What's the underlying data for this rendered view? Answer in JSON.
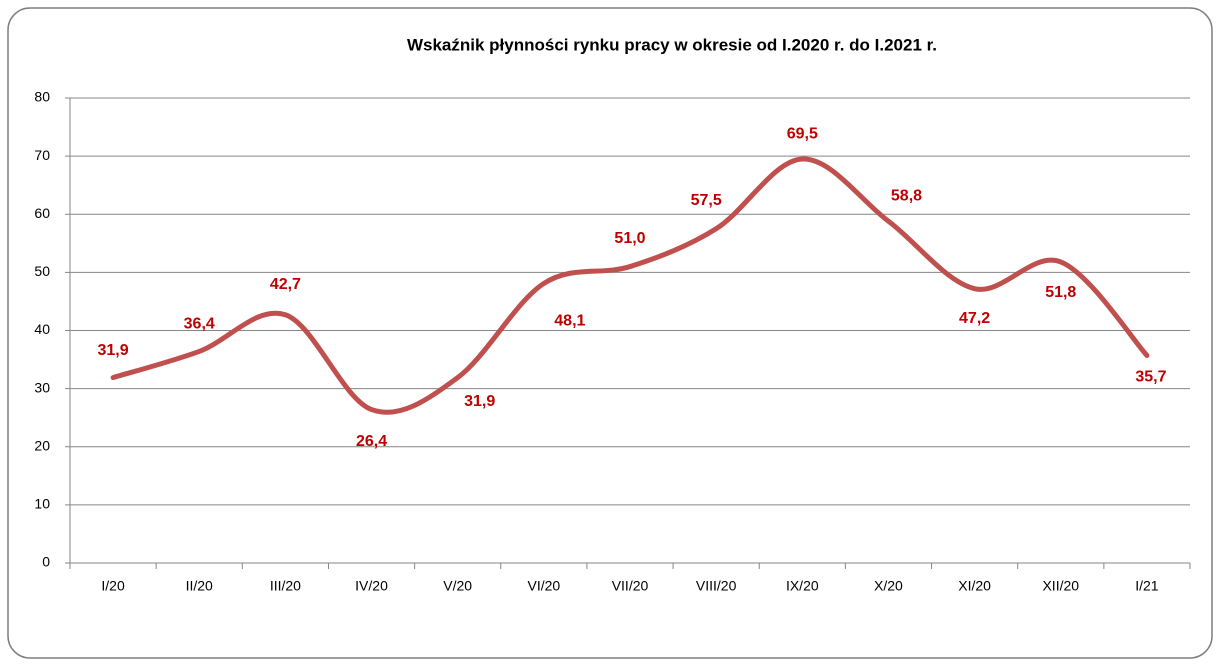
{
  "chart_data": {
    "type": "line",
    "title": "Wskaźnik płynności rynku pracy w okresie od I.2020 r. do I.2021 r.",
    "categories": [
      "I/20",
      "II/20",
      "III/20",
      "IV/20",
      "V/20",
      "VI/20",
      "VII/20",
      "VIII/20",
      "IX/20",
      "X/20",
      "XI/20",
      "XII/20",
      "I/21"
    ],
    "series": [
      {
        "name": "Wskaźnik płynności",
        "color": "#c0504d",
        "values": [
          31.9,
          36.4,
          42.7,
          26.4,
          31.9,
          48.1,
          51.0,
          57.5,
          69.5,
          58.8,
          47.2,
          51.8,
          35.7
        ],
        "value_labels": [
          "31,9",
          "36,4",
          "42,7",
          "26,4",
          "31,9",
          "48,1",
          "51,0",
          "57,5",
          "69,5",
          "58,8",
          "47,2",
          "51,8",
          "35,7"
        ],
        "label_color": "#c00000"
      }
    ],
    "ylim": [
      0,
      80
    ],
    "yticks": [
      0,
      10,
      20,
      30,
      40,
      50,
      60,
      70,
      80
    ],
    "grid": true
  }
}
